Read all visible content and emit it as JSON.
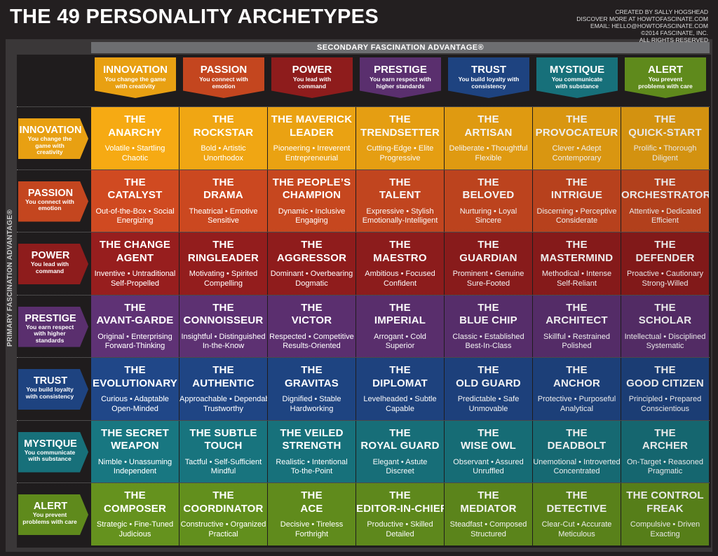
{
  "header": {
    "title": "THE 49 PERSONALITY ARCHETYPES",
    "credits": [
      "CREATED BY SALLY HOGSHEAD",
      "DISCOVER MORE AT HOWTOFASCINATE.COM",
      "EMAIL: HELLO@HOWTOFASCINATE.COM",
      "©2014 FASCINATE, INC.",
      "ALL RIGHTS RESERVED"
    ]
  },
  "secondary_label": "SECONDARY FASCINATION ADVANTAGE®",
  "primary_label": "PRIMARY FASCINATION ADVANTAGE®",
  "advantages": [
    {
      "name": "INNOVATION",
      "desc": "You change the game with creativity",
      "color": "#e8a012"
    },
    {
      "name": "PASSION",
      "desc": "You connect with emotion",
      "color": "#c4461f"
    },
    {
      "name": "POWER",
      "desc": "You lead with command",
      "color": "#8e1c1c"
    },
    {
      "name": "PRESTIGE",
      "desc": "You earn respect with higher standards",
      "color": "#5a2f6e"
    },
    {
      "name": "TRUST",
      "desc": "You build loyalty with consistency",
      "color": "#1e4380"
    },
    {
      "name": "MYSTIQUE",
      "desc": "You communicate with substance",
      "color": "#17707a"
    },
    {
      "name": "ALERT",
      "desc": "You prevent problems with care",
      "color": "#5f8a1c"
    }
  ],
  "rows": [
    [
      {
        "name": [
          "THE",
          "ANARCHY"
        ],
        "traits": [
          "Volatile • Startling",
          "Chaotic"
        ]
      },
      {
        "name": [
          "THE",
          "ROCKSTAR"
        ],
        "traits": [
          "Bold • Artistic",
          "Unorthodox"
        ]
      },
      {
        "name": [
          "THE MAVERICK",
          "LEADER"
        ],
        "traits": [
          "Pioneering • Irreverent",
          "Entrepreneurial"
        ]
      },
      {
        "name": [
          "THE",
          "TRENDSETTER"
        ],
        "traits": [
          "Cutting-Edge • Elite",
          "Progressive"
        ]
      },
      {
        "name": [
          "THE",
          "ARTISAN"
        ],
        "traits": [
          "Deliberate • Thoughtful",
          "Flexible"
        ]
      },
      {
        "name": [
          "THE",
          "PROVOCATEUR"
        ],
        "traits": [
          "Clever • Adept",
          "Contemporary"
        ]
      },
      {
        "name": [
          "THE",
          "QUICK-START"
        ],
        "traits": [
          "Prolific • Thorough",
          "Diligent"
        ]
      }
    ],
    [
      {
        "name": [
          "THE",
          "CATALYST"
        ],
        "traits": [
          "Out-of-the-Box • Social",
          "Energizing"
        ]
      },
      {
        "name": [
          "THE",
          "DRAMA"
        ],
        "traits": [
          "Theatrical • Emotive",
          "Sensitive"
        ]
      },
      {
        "name": [
          "THE PEOPLE’S",
          "CHAMPION"
        ],
        "traits": [
          "Dynamic • Inclusive",
          "Engaging"
        ]
      },
      {
        "name": [
          "THE",
          "TALENT"
        ],
        "traits": [
          "Expressive • Stylish",
          "Emotionally-Intelligent"
        ]
      },
      {
        "name": [
          "THE",
          "BELOVED"
        ],
        "traits": [
          "Nurturing • Loyal",
          "Sincere"
        ]
      },
      {
        "name": [
          "THE",
          "INTRIGUE"
        ],
        "traits": [
          "Discerning • Perceptive",
          "Considerate"
        ]
      },
      {
        "name": [
          "THE",
          "ORCHESTRATOR"
        ],
        "traits": [
          "Attentive • Dedicated",
          "Efficient"
        ]
      }
    ],
    [
      {
        "name": [
          "THE CHANGE",
          "AGENT"
        ],
        "traits": [
          "Inventive • Untraditional",
          "Self-Propelled"
        ]
      },
      {
        "name": [
          "THE",
          "RINGLEADER"
        ],
        "traits": [
          "Motivating • Spirited",
          "Compelling"
        ]
      },
      {
        "name": [
          "THE",
          "AGGRESSOR"
        ],
        "traits": [
          "Dominant • Overbearing",
          "Dogmatic"
        ]
      },
      {
        "name": [
          "THE",
          "MAESTRO"
        ],
        "traits": [
          "Ambitious • Focused",
          "Confident"
        ]
      },
      {
        "name": [
          "THE",
          "GUARDIAN"
        ],
        "traits": [
          "Prominent • Genuine",
          "Sure-Footed"
        ]
      },
      {
        "name": [
          "THE",
          "MASTERMIND"
        ],
        "traits": [
          "Methodical • Intense",
          "Self-Reliant"
        ]
      },
      {
        "name": [
          "THE",
          "DEFENDER"
        ],
        "traits": [
          "Proactive • Cautionary",
          "Strong-Willed"
        ]
      }
    ],
    [
      {
        "name": [
          "THE",
          "AVANT-GARDE"
        ],
        "traits": [
          "Original • Enterprising",
          "Forward-Thinking"
        ]
      },
      {
        "name": [
          "THE",
          "CONNOISSEUR"
        ],
        "traits": [
          "Insightful • Distinguished",
          "In-the-Know"
        ]
      },
      {
        "name": [
          "THE",
          "VICTOR"
        ],
        "traits": [
          "Respected • Competitive",
          "Results-Oriented"
        ]
      },
      {
        "name": [
          "THE",
          "IMPERIAL"
        ],
        "traits": [
          "Arrogant • Cold",
          "Superior"
        ]
      },
      {
        "name": [
          "THE",
          "BLUE CHIP"
        ],
        "traits": [
          "Classic • Established",
          "Best-In-Class"
        ]
      },
      {
        "name": [
          "THE",
          "ARCHITECT"
        ],
        "traits": [
          "Skillful • Restrained",
          "Polished"
        ]
      },
      {
        "name": [
          "THE",
          "SCHOLAR"
        ],
        "traits": [
          "Intellectual • Disciplined",
          "Systematic"
        ]
      }
    ],
    [
      {
        "name": [
          "THE",
          "EVOLUTIONARY"
        ],
        "traits": [
          "Curious • Adaptable",
          "Open-Minded"
        ]
      },
      {
        "name": [
          "THE",
          "AUTHENTIC"
        ],
        "traits": [
          "Approachable • Dependable",
          "Trustworthy"
        ]
      },
      {
        "name": [
          "THE",
          "GRAVITAS"
        ],
        "traits": [
          "Dignified • Stable",
          "Hardworking"
        ]
      },
      {
        "name": [
          "THE",
          "DIPLOMAT"
        ],
        "traits": [
          "Levelheaded • Subtle",
          "Capable"
        ]
      },
      {
        "name": [
          "THE",
          "OLD GUARD"
        ],
        "traits": [
          "Predictable • Safe",
          "Unmovable"
        ]
      },
      {
        "name": [
          "THE",
          "ANCHOR"
        ],
        "traits": [
          "Protective • Purposeful",
          "Analytical"
        ]
      },
      {
        "name": [
          "THE",
          "GOOD CITIZEN"
        ],
        "traits": [
          "Principled • Prepared",
          "Conscientious"
        ]
      }
    ],
    [
      {
        "name": [
          "THE SECRET",
          "WEAPON"
        ],
        "traits": [
          "Nimble • Unassuming",
          "Independent"
        ]
      },
      {
        "name": [
          "THE SUBTLE",
          "TOUCH"
        ],
        "traits": [
          "Tactful • Self-Sufficient",
          "Mindful"
        ]
      },
      {
        "name": [
          "THE VEILED",
          "STRENGTH"
        ],
        "traits": [
          "Realistic • Intentional",
          "To-the-Point"
        ]
      },
      {
        "name": [
          "THE",
          "ROYAL GUARD"
        ],
        "traits": [
          "Elegant • Astute",
          "Discreet"
        ]
      },
      {
        "name": [
          "THE",
          "WISE OWL"
        ],
        "traits": [
          "Observant • Assured",
          "Unruffled"
        ]
      },
      {
        "name": [
          "THE",
          "DEADBOLT"
        ],
        "traits": [
          "Unemotional • Introverted",
          "Concentrated"
        ]
      },
      {
        "name": [
          "THE",
          "ARCHER"
        ],
        "traits": [
          "On-Target • Reasoned",
          "Pragmatic"
        ]
      }
    ],
    [
      {
        "name": [
          "THE",
          "COMPOSER"
        ],
        "traits": [
          "Strategic • Fine-Tuned",
          "Judicious"
        ]
      },
      {
        "name": [
          "THE",
          "COORDINATOR"
        ],
        "traits": [
          "Constructive • Organized",
          "Practical"
        ]
      },
      {
        "name": [
          "THE",
          "ACE"
        ],
        "traits": [
          "Decisive • Tireless",
          "Forthright"
        ]
      },
      {
        "name": [
          "THE",
          "EDITOR-IN-CHIEF"
        ],
        "traits": [
          "Productive • Skilled",
          "Detailed"
        ]
      },
      {
        "name": [
          "THE",
          "MEDIATOR"
        ],
        "traits": [
          "Steadfast • Composed",
          "Structured"
        ]
      },
      {
        "name": [
          "THE",
          "DETECTIVE"
        ],
        "traits": [
          "Clear-Cut • Accurate",
          "Meticulous"
        ]
      },
      {
        "name": [
          "THE CONTROL",
          "FREAK"
        ],
        "traits": [
          "Compulsive • Driven",
          "Exacting"
        ]
      }
    ]
  ]
}
